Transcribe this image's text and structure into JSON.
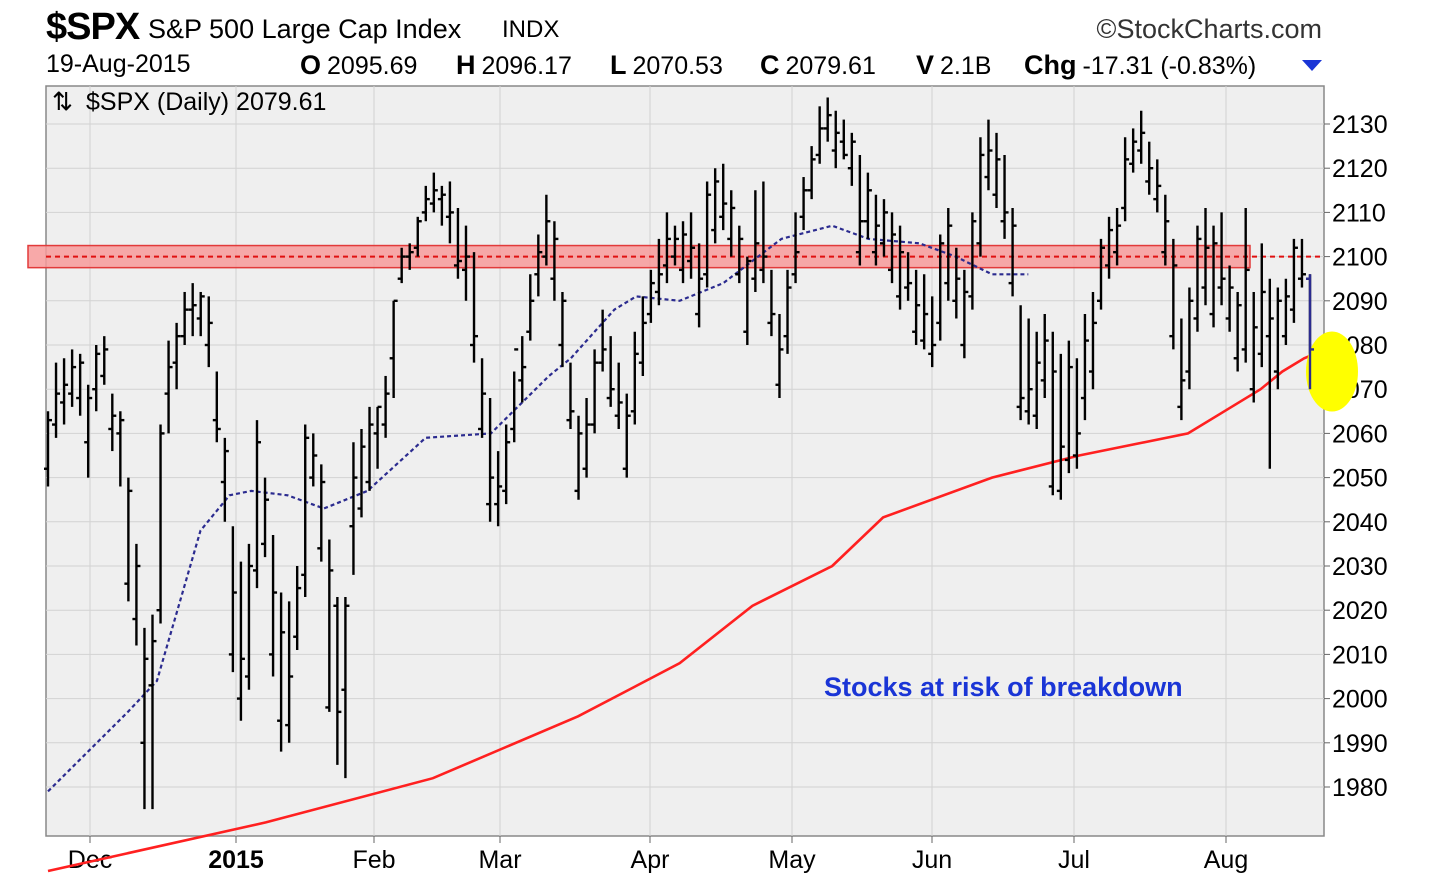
{
  "header": {
    "symbol": "$SPX",
    "name": "S&P 500 Large Cap Index",
    "exchange": "INDX",
    "credit": "©StockCharts.com",
    "date": "19-Aug-2015",
    "open_label": "O",
    "open": "2095.69",
    "high_label": "H",
    "high": "2096.17",
    "low_label": "L",
    "low": "2070.53",
    "close_label": "C",
    "close": "2079.61",
    "volume_label": "V",
    "volume": "2.1B",
    "change_label": "Chg",
    "change": "-17.31 (-0.83%)",
    "change_direction_icon": "triangle-down-icon"
  },
  "chart_data": {
    "type": "ohlc",
    "series_label": "$SPX (Daily) 2079.61",
    "series_icon": "up-down-arrows-icon",
    "x_labels": [
      "Dec",
      "2015",
      "Feb",
      "Mar",
      "Apr",
      "May",
      "Jun",
      "Jul",
      "Aug"
    ],
    "y_ticks": [
      1980,
      1990,
      2000,
      2010,
      2020,
      2030,
      2040,
      2050,
      2060,
      2070,
      2080,
      2090,
      2100,
      2110,
      2120,
      2130
    ],
    "ylim": [
      1972,
      2136
    ],
    "grid": true,
    "annotation": "Stocks at risk of breakdown",
    "resistance_level": 2100,
    "highlight_band": [
      2097.5,
      2102.5
    ],
    "colors": {
      "bars": "#000000",
      "ma_slow": "#ff2020",
      "ma_fast": "#2b2b8f",
      "band_fill": "#f79a9a",
      "band_border": "#e23a3a",
      "annotation": "#1a35d6",
      "highlight": "#ffff00",
      "plot_bg": "#efefef"
    },
    "moving_average_slow": [
      [
        1994,
        1961
      ],
      [
        1994.3,
        1972
      ],
      [
        1994.53,
        1982
      ],
      [
        1994.73,
        1996
      ],
      [
        1994.87,
        2008
      ],
      [
        1994.97,
        2021
      ],
      [
        1995.08,
        2030
      ],
      [
        1995.15,
        2041
      ],
      [
        1995.3,
        2050
      ],
      [
        1995.42,
        2055
      ],
      [
        1995.57,
        2060
      ],
      [
        1995.62,
        2065
      ],
      [
        1995.67,
        2070
      ],
      [
        1995.7,
        2074
      ],
      [
        1995.73,
        2077
      ],
      [
        1995.76,
        2079
      ]
    ],
    "moving_average_fast": [
      [
        1994,
        1979
      ],
      [
        1994.11,
        1997
      ],
      [
        1994.15,
        2004
      ],
      [
        1994.18,
        2021
      ],
      [
        1994.21,
        2038
      ],
      [
        1994.25,
        2046
      ],
      [
        1994.28,
        2047
      ],
      [
        1994.33,
        2046
      ],
      [
        1994.38,
        2043
      ],
      [
        1994.44,
        2047
      ],
      [
        1994.52,
        2059
      ],
      [
        1994.61,
        2060
      ],
      [
        1994.69,
        2073
      ],
      [
        1994.72,
        2077
      ],
      [
        1994.78,
        2088
      ],
      [
        1994.81,
        2091
      ],
      [
        1994.87,
        2090
      ],
      [
        1994.93,
        2094
      ],
      [
        1995.01,
        2104
      ],
      [
        1995.08,
        2107
      ],
      [
        1995.13,
        2104
      ],
      [
        1995.2,
        2103
      ],
      [
        1995.25,
        2100
      ],
      [
        1995.3,
        2096
      ],
      [
        1995.35,
        2096
      ]
    ],
    "days": [
      [
        2048,
        2065,
        2052,
        2063
      ],
      [
        2059,
        2076,
        2062,
        2069
      ],
      [
        2062,
        2077,
        2067,
        2071
      ],
      [
        2066,
        2079,
        2069,
        2075
      ],
      [
        2064,
        2078,
        2068,
        2076
      ],
      [
        2050,
        2071,
        2058,
        2068
      ],
      [
        2065,
        2080,
        2070,
        2078
      ],
      [
        2071,
        2082,
        2073,
        2079
      ],
      [
        2056,
        2069,
        2061,
        2064
      ],
      [
        2048,
        2065,
        2060,
        2063
      ],
      [
        2022,
        2050,
        2026,
        2047
      ],
      [
        2012,
        2035,
        2018,
        2030
      ],
      [
        1975,
        2016,
        1990,
        2009
      ],
      [
        1975,
        2019,
        2003,
        2013
      ],
      [
        2017,
        2062,
        2020,
        2060
      ],
      [
        2060,
        2081,
        2069,
        2075
      ],
      [
        2070,
        2085,
        2076,
        2082
      ],
      [
        2080,
        2092,
        2082,
        2088
      ],
      [
        2082,
        2094,
        2088,
        2089
      ],
      [
        2082,
        2092,
        2086,
        2091
      ],
      [
        2075,
        2091,
        2080,
        2085
      ],
      [
        2058,
        2074,
        2063,
        2061
      ],
      [
        2040,
        2059,
        2049,
        2056
      ],
      [
        2006,
        2039,
        2010,
        2024
      ],
      [
        1995,
        2031,
        2000,
        2009
      ],
      [
        2002,
        2035,
        2005,
        2030
      ],
      [
        2025,
        2063,
        2029,
        2058
      ],
      [
        2032,
        2050,
        2035,
        2045
      ],
      [
        2005,
        2037,
        2010,
        2024
      ],
      [
        1988,
        2024,
        1995,
        2015
      ],
      [
        1990,
        2022,
        1994,
        2005
      ],
      [
        2011,
        2030,
        2014,
        2025
      ],
      [
        2023,
        2062,
        2028,
        2059
      ],
      [
        2048,
        2060,
        2050,
        2055
      ],
      [
        2031,
        2053,
        2034,
        2049
      ],
      [
        1997,
        2036,
        1998,
        2029
      ],
      [
        1985,
        2023,
        2021,
        1997
      ],
      [
        1982,
        2023,
        2002,
        2021
      ],
      [
        2028,
        2058,
        2039,
        2050
      ],
      [
        2041,
        2061,
        2043,
        2057
      ],
      [
        2047,
        2066,
        2049,
        2062
      ],
      [
        2052,
        2066,
        2060,
        2066
      ],
      [
        2059,
        2073,
        2062,
        2069
      ],
      [
        2068,
        2090,
        2077,
        2090
      ],
      [
        2094,
        2102,
        2095,
        2100
      ],
      [
        2097,
        2103,
        2100,
        2101
      ],
      [
        2100,
        2109,
        2102,
        2108
      ],
      [
        2108,
        2116,
        2110,
        2113
      ],
      [
        2110,
        2119,
        2112,
        2115
      ],
      [
        2107,
        2116,
        2113,
        2114
      ],
      [
        2103,
        2117,
        2109,
        2110
      ],
      [
        2095,
        2111,
        2098,
        2099
      ],
      [
        2090,
        2107,
        2097,
        2100
      ],
      [
        2076,
        2101,
        2080,
        2082
      ],
      [
        2059,
        2077,
        2061,
        2069
      ],
      [
        2040,
        2068,
        2044,
        2050
      ],
      [
        2039,
        2056,
        2044,
        2048
      ],
      [
        2044,
        2062,
        2047,
        2058
      ],
      [
        2058,
        2074,
        2061,
        2079
      ],
      [
        2067,
        2082,
        2072,
        2075
      ],
      [
        2081,
        2096,
        2083,
        2090
      ],
      [
        2091,
        2105,
        2096,
        2101
      ],
      [
        2098,
        2114,
        2100,
        2108
      ],
      [
        2090,
        2108,
        2095,
        2104
      ],
      [
        2075,
        2092,
        2080,
        2090
      ],
      [
        2061,
        2076,
        2063,
        2065
      ],
      [
        2045,
        2064,
        2047,
        2060
      ],
      [
        2050,
        2068,
        2052,
        2062
      ],
      [
        2060,
        2079,
        2062,
        2076
      ],
      [
        2074,
        2088,
        2076,
        2079
      ],
      [
        2066,
        2082,
        2068,
        2070
      ],
      [
        2061,
        2076,
        2064,
        2067
      ],
      [
        2050,
        2069,
        2052,
        2064
      ],
      [
        2062,
        2083,
        2065,
        2078
      ],
      [
        2073,
        2091,
        2076,
        2085
      ],
      [
        2085,
        2097,
        2087,
        2094
      ],
      [
        2089,
        2104,
        2092,
        2096
      ],
      [
        2094,
        2110,
        2098,
        2104
      ],
      [
        2098,
        2107,
        2100,
        2104
      ],
      [
        2094,
        2108,
        2097,
        2105
      ],
      [
        2095,
        2110,
        2099,
        2102
      ],
      [
        2084,
        2103,
        2087,
        2095
      ],
      [
        2093,
        2117,
        2096,
        2114
      ],
      [
        2103,
        2120,
        2106,
        2117
      ],
      [
        2106,
        2121,
        2109,
        2112
      ],
      [
        2100,
        2115,
        2104,
        2111
      ],
      [
        2094,
        2107,
        2096,
        2104
      ],
      [
        2080,
        2100,
        2083,
        2099
      ],
      [
        2092,
        2115,
        2095,
        2103
      ],
      [
        2094,
        2117,
        2097,
        2100
      ],
      [
        2082,
        2097,
        2085,
        2087
      ],
      [
        2068,
        2087,
        2071,
        2079
      ],
      [
        2078,
        2097,
        2082,
        2093
      ],
      [
        2094,
        2110,
        2096,
        2101
      ],
      [
        2106,
        2118,
        2109,
        2115
      ],
      [
        2113,
        2125,
        2115,
        2122
      ],
      [
        2121,
        2134,
        2123,
        2129
      ],
      [
        2126,
        2136,
        2129,
        2132
      ],
      [
        2120,
        2133,
        2124,
        2128
      ],
      [
        2122,
        2131,
        2126,
        2123
      ],
      [
        2116,
        2128,
        2120,
        2126
      ],
      [
        2098,
        2123,
        2101,
        2108
      ],
      [
        2104,
        2119,
        2108,
        2115
      ],
      [
        2098,
        2114,
        2101,
        2107
      ],
      [
        2100,
        2113,
        2103,
        2110
      ],
      [
        2094,
        2110,
        2097,
        2105
      ],
      [
        2088,
        2107,
        2091,
        2101
      ],
      [
        2090,
        2101,
        2093,
        2094
      ],
      [
        2080,
        2097,
        2083,
        2089
      ],
      [
        2079,
        2096,
        2081,
        2087
      ],
      [
        2075,
        2091,
        2078,
        2080
      ],
      [
        2081,
        2105,
        2085,
        2103
      ],
      [
        2090,
        2111,
        2094,
        2107
      ],
      [
        2086,
        2102,
        2090,
        2095
      ],
      [
        2077,
        2097,
        2080,
        2092
      ],
      [
        2088,
        2110,
        2091,
        2108
      ],
      [
        2100,
        2127,
        2103,
        2123
      ],
      [
        2115,
        2131,
        2118,
        2124
      ],
      [
        2111,
        2128,
        2114,
        2122
      ],
      [
        2104,
        2123,
        2108,
        2110
      ],
      [
        2091,
        2111,
        2094,
        2107
      ],
      [
        2063,
        2089,
        2066,
        2068
      ],
      [
        2062,
        2086,
        2065,
        2070
      ],
      [
        2061,
        2083,
        2064,
        2076
      ],
      [
        2068,
        2087,
        2072,
        2081
      ],
      [
        2046,
        2083,
        2048,
        2074
      ],
      [
        2045,
        2078,
        2047,
        2057
      ],
      [
        2051,
        2081,
        2054,
        2075
      ],
      [
        2052,
        2077,
        2055,
        2060
      ],
      [
        2063,
        2087,
        2068,
        2081
      ],
      [
        2070,
        2092,
        2074,
        2085
      ],
      [
        2088,
        2104,
        2090,
        2102
      ],
      [
        2095,
        2109,
        2098,
        2106
      ],
      [
        2098,
        2111,
        2101,
        2107
      ],
      [
        2108,
        2127,
        2111,
        2122
      ],
      [
        2119,
        2129,
        2121,
        2126
      ],
      [
        2121,
        2133,
        2124,
        2128
      ],
      [
        2114,
        2126,
        2117,
        2120
      ],
      [
        2110,
        2122,
        2113,
        2116
      ],
      [
        2098,
        2114,
        2101,
        2108
      ],
      [
        2079,
        2104,
        2082,
        2098
      ],
      [
        2063,
        2086,
        2066,
        2072
      ],
      [
        2070,
        2093,
        2074,
        2090
      ],
      [
        2083,
        2107,
        2086,
        2104
      ],
      [
        2089,
        2111,
        2093,
        2102
      ],
      [
        2084,
        2107,
        2087,
        2103
      ],
      [
        2089,
        2110,
        2093,
        2095
      ],
      [
        2083,
        2098,
        2086,
        2093
      ],
      [
        2074,
        2092,
        2077,
        2089
      ],
      [
        2076,
        2111,
        2079,
        2097
      ],
      [
        2067,
        2092,
        2070,
        2084
      ],
      [
        2075,
        2103,
        2078,
        2092
      ],
      [
        2052,
        2095,
        2082,
        2086
      ],
      [
        2070,
        2093,
        2074,
        2090
      ],
      [
        2080,
        2095,
        2082,
        2091
      ],
      [
        2085,
        2104,
        2088,
        2102
      ],
      [
        2093,
        2104,
        2095,
        2096
      ],
      [
        2070,
        2096,
        2095,
        2079
      ]
    ]
  }
}
